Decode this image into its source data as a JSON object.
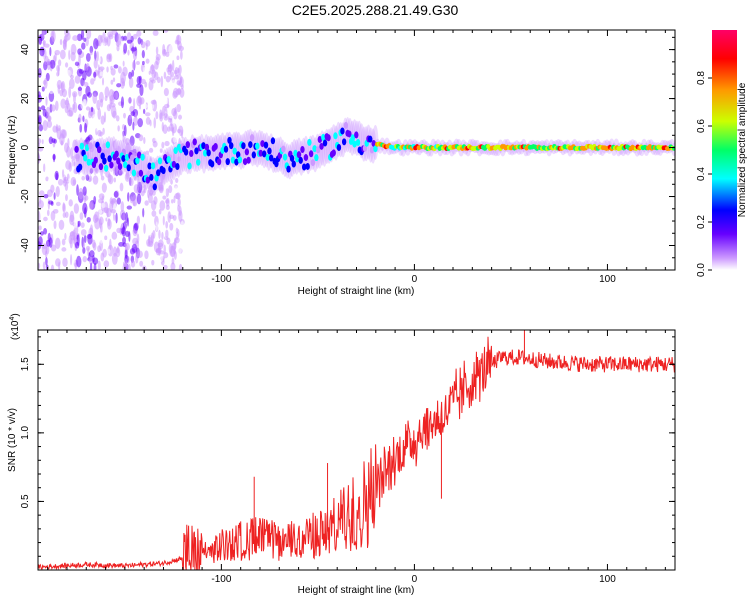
{
  "figure": {
    "title": "C2E5.2025.288.21.49.G30"
  },
  "chart_data": [
    {
      "type": "heatmap",
      "name": "spectrogram",
      "xlabel": "Height of straight line (km)",
      "ylabel": "Frequency (Hz)",
      "xlim": [
        -195,
        135
      ],
      "ylim": [
        -50,
        48
      ],
      "x_ticks": [
        -100,
        0,
        100
      ],
      "x_tick_labels": [
        "-100",
        "0",
        "100"
      ],
      "y_ticks": [
        -40,
        -20,
        0,
        20,
        40
      ],
      "y_tick_labels": [
        "-40",
        "-20",
        "0",
        "20",
        "40"
      ],
      "colorbar": {
        "label": "Normalized spectral amplitude",
        "range": [
          0,
          1
        ],
        "ticks": [
          0.0,
          0.2,
          0.4,
          0.6,
          0.8
        ],
        "tick_labels": [
          "0.0",
          "0.2",
          "0.4",
          "0.6",
          "0.8"
        ],
        "colors": [
          "#ffffff",
          "#cc99ff",
          "#6600ff",
          "#0000ff",
          "#00ffff",
          "#00ff66",
          "#ccff00",
          "#ff9900",
          "#ff0000",
          "#ff0066"
        ]
      },
      "trace_centerline": [
        {
          "x": -170,
          "y": -4
        },
        {
          "x": -150,
          "y": -3
        },
        {
          "x": -135,
          "y": -12
        },
        {
          "x": -120,
          "y": -3
        },
        {
          "x": -100,
          "y": -2
        },
        {
          "x": -80,
          "y": 0
        },
        {
          "x": -65,
          "y": -5
        },
        {
          "x": -50,
          "y": -2
        },
        {
          "x": -35,
          "y": 5
        },
        {
          "x": -25,
          "y": 2
        },
        {
          "x": -10,
          "y": 0
        },
        {
          "x": 0,
          "y": 0
        },
        {
          "x": 50,
          "y": 0
        },
        {
          "x": 100,
          "y": 0
        },
        {
          "x": 135,
          "y": 0
        }
      ]
    },
    {
      "type": "line",
      "name": "snr",
      "xlabel": "Height of straight line (km)",
      "ylabel": "SNR (10 * v/v)",
      "y_scale_label": "(x10",
      "y_scale_exponent": "4",
      "xlim": [
        -195,
        135
      ],
      "ylim": [
        0,
        1.75
      ],
      "x_ticks": [
        -100,
        0,
        100
      ],
      "x_tick_labels": [
        "-100",
        "0",
        "100"
      ],
      "y_ticks": [
        0.5,
        1.0,
        1.5
      ],
      "y_tick_labels": [
        "0.5",
        "1.0",
        "1.5"
      ],
      "color": "#ee2222",
      "envelope": [
        {
          "x": -195,
          "y": 0.02
        },
        {
          "x": -170,
          "y": 0.04
        },
        {
          "x": -150,
          "y": 0.03
        },
        {
          "x": -130,
          "y": 0.05
        },
        {
          "x": -110,
          "y": 0.12
        },
        {
          "x": -95,
          "y": 0.2
        },
        {
          "x": -80,
          "y": 0.24
        },
        {
          "x": -70,
          "y": 0.2
        },
        {
          "x": -60,
          "y": 0.22
        },
        {
          "x": -45,
          "y": 0.28
        },
        {
          "x": -35,
          "y": 0.38
        },
        {
          "x": -25,
          "y": 0.5
        },
        {
          "x": -15,
          "y": 0.7
        },
        {
          "x": -5,
          "y": 0.9
        },
        {
          "x": 5,
          "y": 1.02
        },
        {
          "x": 15,
          "y": 1.12
        },
        {
          "x": 25,
          "y": 1.3
        },
        {
          "x": 35,
          "y": 1.45
        },
        {
          "x": 45,
          "y": 1.55
        },
        {
          "x": 55,
          "y": 1.55
        },
        {
          "x": 70,
          "y": 1.52
        },
        {
          "x": 90,
          "y": 1.5
        },
        {
          "x": 110,
          "y": 1.5
        },
        {
          "x": 135,
          "y": 1.5
        }
      ],
      "spikes": [
        {
          "x": -83,
          "y": 0.68
        },
        {
          "x": -45,
          "y": 0.78
        },
        {
          "x": 14,
          "y": 0.52
        },
        {
          "x": 57,
          "y": 1.75
        }
      ]
    }
  ]
}
